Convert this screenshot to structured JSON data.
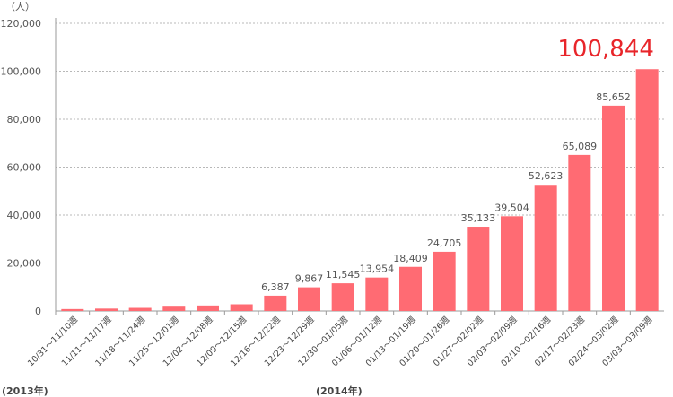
{
  "chart_data": {
    "type": "bar",
    "unit_label": "（人）",
    "categories": [
      "10/31～11/10週",
      "11/11～11/17週",
      "11/18～11/24週",
      "11/25～12/01週",
      "12/02～12/08週",
      "12/09～12/15週",
      "12/16～12/22週",
      "12/23～12/29週",
      "12/30～01/05週",
      "01/06～01/12週",
      "01/13～01/19週",
      "01/20～01/26週",
      "01/27～02/02週",
      "02/03～02/09週",
      "02/10～02/16週",
      "02/17～02/23週",
      "02/24～03/02週",
      "03/03～03/09週"
    ],
    "values": [
      800,
      1000,
      1300,
      1800,
      2300,
      2800,
      6387,
      9867,
      11545,
      13954,
      18409,
      24705,
      35133,
      39504,
      52623,
      65089,
      85652,
      100844
    ],
    "data_labels": [
      null,
      null,
      null,
      null,
      null,
      null,
      "6,387",
      "9,867",
      "11,545",
      "13,954",
      "18,409",
      "24,705",
      "35,133",
      "39,504",
      "52,623",
      "65,089",
      "85,652",
      "100,844"
    ],
    "highlight_index": 17,
    "y_ticks": [
      "0",
      "20,000",
      "40,000",
      "60,000",
      "80,000",
      "100,000",
      "120,000"
    ],
    "ylim": [
      0,
      120000
    ],
    "grid": "horizontal-dotted",
    "year_labels": [
      "(2013年)",
      "(2014年)"
    ],
    "colors": {
      "bar": "#ff6b73",
      "highlight_text": "#e8252a",
      "grid": "#b8b8b8"
    }
  }
}
